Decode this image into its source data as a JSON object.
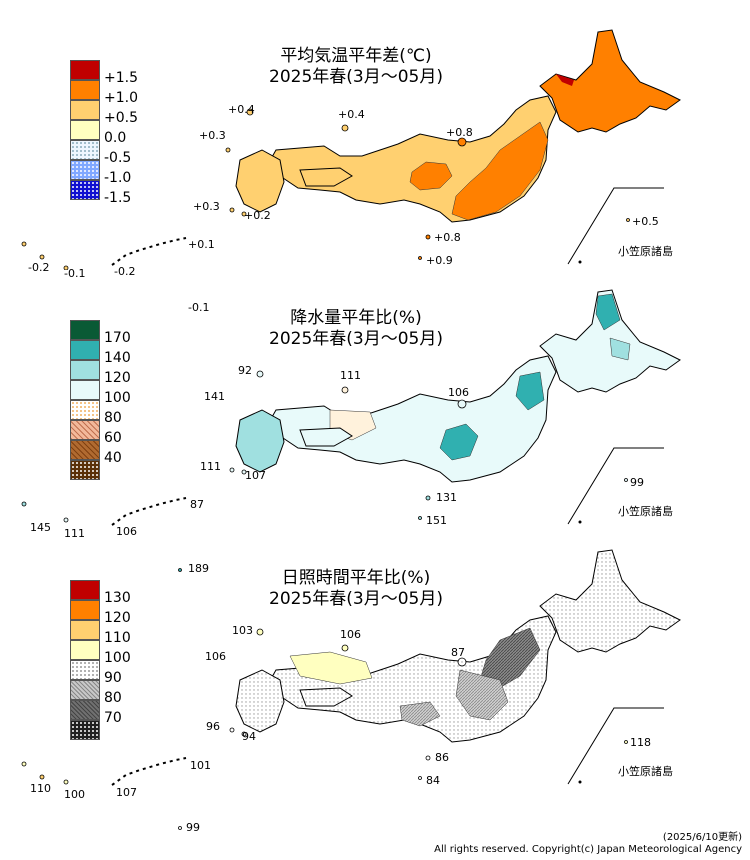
{
  "panels": [
    {
      "id": "temp",
      "title_line1": "平均気温平年差(℃)",
      "title_line2": "2025年春(3月～05月)",
      "legend": [
        {
          "label": "+1.5",
          "color": "#c00000"
        },
        {
          "label": "+1.0",
          "color": "#ff8000"
        },
        {
          "label": "+0.5",
          "color": "#ffd070"
        },
        {
          "label": "0.0",
          "color": "#ffffc0"
        },
        {
          "label": "-0.5",
          "color": "#dff0ff"
        },
        {
          "label": "-1.0",
          "color": "#80a8ff"
        },
        {
          "label": "-1.5",
          "color": "#2020d0"
        }
      ],
      "values": {
        "okinawa_far": "-0.2",
        "okinawa_mid": "-0.1",
        "okinawa_main": "-0.2",
        "amami": "+0.1",
        "daito": "-0.1",
        "tsushima": "+0.4",
        "goto": "+0.3",
        "oki": "+0.4",
        "koshiki": "+0.3",
        "tanegashima": "+0.2",
        "sado": "+0.8",
        "hachijo": "+0.8",
        "izu_south": "+0.9",
        "ogasawara": "+0.5"
      },
      "ogasawara_label": "小笠原諸島"
    },
    {
      "id": "precip",
      "title_line1": "降水量平年比(%)",
      "title_line2": "2025年春(3月～05月)",
      "legend": [
        {
          "label": "170",
          "color": "#0a5a35"
        },
        {
          "label": "140",
          "color": "#30b0b0"
        },
        {
          "label": "120",
          "color": "#a0e0e0"
        },
        {
          "label": "100",
          "color": "#e8fafa"
        },
        {
          "label": "80",
          "color": "#fff2dc"
        },
        {
          "label": "60",
          "color": "#f2b89a"
        },
        {
          "label": "40",
          "color": "#b06a30"
        }
      ],
      "values": {
        "okinawa_far": "145",
        "okinawa_mid": "111",
        "okinawa_main": "106",
        "amami": "87",
        "daito": "189",
        "tsushima": "92",
        "goto": "141",
        "oki": "111",
        "koshiki": "111",
        "tanegashima": "107",
        "sado": "106",
        "hachijo": "131",
        "izu_south": "151",
        "ogasawara": "99"
      },
      "ogasawara_label": "小笠原諸島"
    },
    {
      "id": "sunshine",
      "title_line1": "日照時間平年比(%)",
      "title_line2": "2025年春(3月～05月)",
      "legend": [
        {
          "label": "130",
          "color": "#c00000"
        },
        {
          "label": "120",
          "color": "#ff8000"
        },
        {
          "label": "110",
          "color": "#ffd070"
        },
        {
          "label": "100",
          "color": "#ffffc0"
        },
        {
          "label": "90",
          "color": "#ffffff"
        },
        {
          "label": "80",
          "color": "#c8c8c8"
        },
        {
          "label": "70",
          "color": "#707070"
        }
      ],
      "extra_bottom_color": "#202020",
      "values": {
        "okinawa_far": "110",
        "okinawa_mid": "100",
        "okinawa_main": "107",
        "amami": "101",
        "daito": "99",
        "tsushima": "103",
        "goto": "106",
        "oki": "106",
        "koshiki": "96",
        "tanegashima": "94",
        "sado": "87",
        "hachijo": "86",
        "izu_south": "84",
        "ogasawara": "118"
      },
      "ogasawara_label": "小笠原諸島"
    }
  ],
  "footer": {
    "updated": "(2025/6/10更新)",
    "copyright": "All rights reserved. Copyright(c) Japan Meteorological Agency"
  }
}
